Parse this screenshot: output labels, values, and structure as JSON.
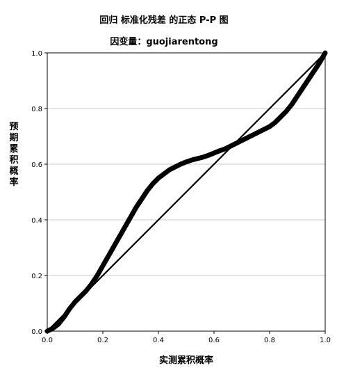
{
  "chart_data": {
    "type": "line",
    "title": "回归 标准化残差 的正态 P-P 图",
    "subtitle": "因变量：guojiarentong",
    "xlabel": "实测累积概率",
    "ylabel": "预期累积概率",
    "xlim": [
      0.0,
      1.0
    ],
    "ylim": [
      0.0,
      1.0
    ],
    "xticks": [
      "0.0",
      "0.2",
      "0.4",
      "0.6",
      "0.8",
      "1.0"
    ],
    "yticks": [
      "0.0",
      "0.2",
      "0.4",
      "0.6",
      "0.8",
      "1.0"
    ],
    "grid": "horizontal",
    "legend": "none",
    "series": [
      {
        "role": "observed",
        "x": [
          0.0,
          0.02,
          0.04,
          0.06,
          0.08,
          0.1,
          0.12,
          0.14,
          0.16,
          0.18,
          0.2,
          0.22,
          0.24,
          0.26,
          0.28,
          0.3,
          0.32,
          0.34,
          0.36,
          0.38,
          0.4,
          0.42,
          0.44,
          0.46,
          0.48,
          0.5,
          0.52,
          0.54,
          0.56,
          0.58,
          0.6,
          0.62,
          0.64,
          0.66,
          0.68,
          0.7,
          0.72,
          0.74,
          0.76,
          0.78,
          0.8,
          0.82,
          0.84,
          0.86,
          0.88,
          0.9,
          0.92,
          0.94,
          0.96,
          0.98,
          1.0
        ],
        "y": [
          0.0,
          0.01,
          0.025,
          0.05,
          0.08,
          0.105,
          0.125,
          0.145,
          0.17,
          0.2,
          0.235,
          0.27,
          0.305,
          0.34,
          0.375,
          0.41,
          0.445,
          0.475,
          0.505,
          0.53,
          0.55,
          0.565,
          0.58,
          0.59,
          0.6,
          0.608,
          0.615,
          0.62,
          0.625,
          0.632,
          0.64,
          0.648,
          0.655,
          0.665,
          0.675,
          0.685,
          0.695,
          0.705,
          0.715,
          0.725,
          0.735,
          0.75,
          0.77,
          0.79,
          0.815,
          0.845,
          0.875,
          0.905,
          0.935,
          0.965,
          1.0
        ],
        "color": "#000000"
      },
      {
        "role": "reference",
        "x": [
          0.0,
          1.0
        ],
        "y": [
          0.0,
          1.0
        ],
        "color": "#000000"
      }
    ]
  }
}
